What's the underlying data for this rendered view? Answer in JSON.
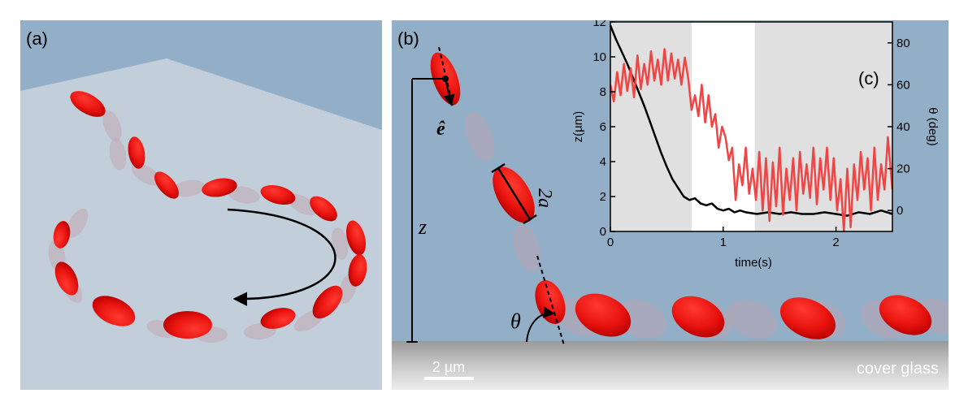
{
  "panels": {
    "a_label": "(a)",
    "b_label": "(b)",
    "c_label": "(c)"
  },
  "symbols": {
    "e_hat": "ê",
    "two_a": "2a",
    "z": "z",
    "theta": "θ"
  },
  "scale_bar": "2 µm",
  "surface_label": "cover glass",
  "colors": {
    "cell": "#e8130f",
    "ghost": "#c2a0aa",
    "background": "#93afc8",
    "floor_a": "#c2cfdb",
    "glass": "#b0b0b0",
    "trace_z": "#000000",
    "trace_theta": "#f04545",
    "shade": "#e0e0e0"
  },
  "chart_data": {
    "type": "line",
    "xlabel": "time(s)",
    "ylabel_left": "z(µm)",
    "ylabel_right": "θ (deg)",
    "xlim": [
      0,
      2.5
    ],
    "ylim_left": [
      0,
      12
    ],
    "ylim_right": [
      -10,
      90
    ],
    "xticks": [
      "0",
      "1",
      "2"
    ],
    "yticks_left": [
      "0",
      "2",
      "4",
      "6",
      "8",
      "10",
      "12"
    ],
    "yticks_right": [
      "0",
      "20",
      "40",
      "60",
      "80"
    ],
    "shaded_regions": [
      [
        0,
        0.72
      ],
      [
        1.28,
        2.5
      ]
    ],
    "series": [
      {
        "axis": "left",
        "color": "#000000",
        "x": [
          0,
          0.05,
          0.1,
          0.15,
          0.2,
          0.25,
          0.3,
          0.35,
          0.4,
          0.45,
          0.5,
          0.55,
          0.6,
          0.65,
          0.7,
          0.75,
          0.8,
          0.85,
          0.9,
          0.95,
          1.0,
          1.05,
          1.1,
          1.15,
          1.2,
          1.3,
          1.4,
          1.5,
          1.6,
          1.7,
          1.8,
          1.9,
          2.0,
          2.1,
          2.2,
          2.3,
          2.4,
          2.5
        ],
        "y": [
          11.8,
          11.0,
          10.3,
          9.6,
          8.8,
          8.0,
          7.2,
          6.3,
          5.4,
          4.5,
          3.7,
          3.0,
          2.5,
          2.0,
          1.8,
          1.9,
          1.6,
          1.5,
          1.6,
          1.3,
          1.2,
          1.3,
          1.1,
          1.2,
          1.1,
          1.0,
          1.1,
          1.0,
          1.1,
          1.0,
          1.0,
          1.1,
          1.0,
          0.9,
          1.1,
          1.0,
          1.2,
          1.0
        ]
      },
      {
        "axis": "right",
        "color": "#f04545",
        "x": [
          0,
          0.03,
          0.06,
          0.09,
          0.12,
          0.15,
          0.18,
          0.21,
          0.24,
          0.27,
          0.3,
          0.33,
          0.36,
          0.39,
          0.42,
          0.45,
          0.48,
          0.51,
          0.54,
          0.57,
          0.6,
          0.63,
          0.66,
          0.69,
          0.72,
          0.75,
          0.78,
          0.81,
          0.84,
          0.87,
          0.9,
          0.93,
          0.96,
          0.99,
          1.02,
          1.05,
          1.08,
          1.11,
          1.14,
          1.17,
          1.2,
          1.23,
          1.26,
          1.29,
          1.32,
          1.35,
          1.38,
          1.41,
          1.44,
          1.47,
          1.5,
          1.53,
          1.56,
          1.59,
          1.62,
          1.65,
          1.68,
          1.71,
          1.74,
          1.77,
          1.8,
          1.83,
          1.86,
          1.89,
          1.92,
          1.95,
          1.98,
          2.01,
          2.04,
          2.07,
          2.1,
          2.13,
          2.16,
          2.19,
          2.22,
          2.25,
          2.28,
          2.31,
          2.34,
          2.37,
          2.4,
          2.43,
          2.46,
          2.5
        ],
        "y": [
          60,
          52,
          66,
          55,
          70,
          57,
          68,
          54,
          74,
          58,
          70,
          60,
          76,
          62,
          72,
          60,
          77,
          62,
          75,
          63,
          72,
          60,
          73,
          63,
          48,
          55,
          45,
          60,
          42,
          55,
          40,
          46,
          30,
          40,
          35,
          24,
          30,
          5,
          22,
          12,
          30,
          8,
          20,
          5,
          28,
          0,
          25,
          -5,
          23,
          2,
          30,
          -2,
          20,
          5,
          25,
          0,
          28,
          8,
          22,
          6,
          30,
          3,
          25,
          10,
          30,
          5,
          25,
          0,
          15,
          -10,
          20,
          -8,
          22,
          5,
          28,
          10,
          25,
          0,
          30,
          5,
          22,
          10,
          35,
          10
        ]
      }
    ]
  }
}
